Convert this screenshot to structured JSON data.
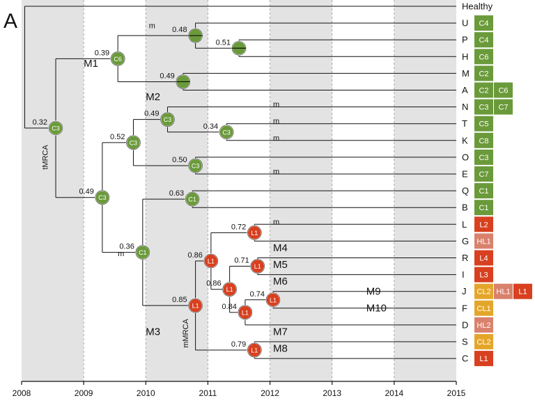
{
  "panel_label": "A",
  "axis": {
    "years": [
      "2008",
      "2009",
      "2010",
      "2011",
      "2012",
      "2013",
      "2014",
      "2015"
    ]
  },
  "chart_data": {
    "type": "phylogenetic-tree",
    "x_unit": "year",
    "xlim": [
      2008,
      2015
    ],
    "leaves": [
      {
        "label": "Healthy",
        "tags": []
      },
      {
        "label": "U",
        "tags": [
          "C4"
        ]
      },
      {
        "label": "P",
        "tags": [
          "C4"
        ]
      },
      {
        "label": "H",
        "tags": [
          "C6"
        ]
      },
      {
        "label": "M",
        "tags": [
          "C2"
        ]
      },
      {
        "label": "A",
        "tags": [
          "C2",
          "C6"
        ]
      },
      {
        "label": "N",
        "tags": [
          "C3",
          "C7"
        ]
      },
      {
        "label": "T",
        "tags": [
          "C5"
        ]
      },
      {
        "label": "K",
        "tags": [
          "C8"
        ]
      },
      {
        "label": "O",
        "tags": [
          "C3"
        ]
      },
      {
        "label": "E",
        "tags": [
          "C7"
        ]
      },
      {
        "label": "Q",
        "tags": [
          "C1"
        ]
      },
      {
        "label": "B",
        "tags": [
          "C1"
        ]
      },
      {
        "label": "L",
        "tags": [
          "L2"
        ]
      },
      {
        "label": "G",
        "tags": [
          "HL1"
        ]
      },
      {
        "label": "R",
        "tags": [
          "L4"
        ]
      },
      {
        "label": "I",
        "tags": [
          "L3"
        ]
      },
      {
        "label": "J",
        "tags": [
          "CL2",
          "HL1",
          "L1"
        ]
      },
      {
        "label": "F",
        "tags": [
          "CL1"
        ]
      },
      {
        "label": "D",
        "tags": [
          "HL2"
        ]
      },
      {
        "label": "S",
        "tags": [
          "CL2"
        ]
      },
      {
        "label": "C",
        "tags": [
          "L1"
        ]
      }
    ],
    "nodes": [
      {
        "id": "n_root",
        "x": 2008.05,
        "children": [
          "Healthy",
          "n_c3a"
        ]
      },
      {
        "id": "n_c3a",
        "x": 2008.55,
        "badge": "C3",
        "color": "green",
        "support": "0.32",
        "children": [
          "n_c6",
          "n_c3b"
        ]
      },
      {
        "id": "n_c6",
        "x": 2009.55,
        "badge": "C6",
        "color": "green",
        "support": "0.39",
        "children": [
          "n_half1",
          "n_half3"
        ]
      },
      {
        "id": "n_half1",
        "x": 2010.8,
        "badge": "",
        "half": true,
        "color": "green",
        "support": "0.48",
        "children": [
          "U",
          "n_half2"
        ]
      },
      {
        "id": "n_half2",
        "x": 2011.5,
        "badge": "",
        "half": true,
        "color": "green",
        "support": "0.51",
        "children": [
          "P",
          "H"
        ]
      },
      {
        "id": "n_half3",
        "x": 2010.6,
        "badge": "",
        "half": true,
        "color": "green",
        "support": "0.49",
        "children": [
          "M",
          "A"
        ]
      },
      {
        "id": "n_c3b",
        "x": 2009.3,
        "badge": "C3",
        "color": "green",
        "support": "0.49",
        "children": [
          "n_c3c",
          "n_c1a"
        ]
      },
      {
        "id": "n_c3c",
        "x": 2009.8,
        "badge": "C3",
        "color": "green",
        "support": "0.52",
        "children": [
          "n_c3d",
          "n_c3f"
        ]
      },
      {
        "id": "n_c3d",
        "x": 2010.35,
        "badge": "C3",
        "color": "green",
        "support": "0.49",
        "children": [
          "N",
          "n_c3e"
        ]
      },
      {
        "id": "n_c3e",
        "x": 2011.3,
        "badge": "C3",
        "color": "green",
        "support": "0.34",
        "children": [
          "T",
          "K"
        ]
      },
      {
        "id": "n_c3f",
        "x": 2010.8,
        "badge": "C3",
        "color": "green",
        "support": "0.50",
        "children": [
          "O",
          "E"
        ]
      },
      {
        "id": "n_c1a",
        "x": 2009.95,
        "badge": "C1",
        "color": "green",
        "support": "0.36",
        "children": [
          "n_c1b",
          "n_l1a"
        ]
      },
      {
        "id": "n_c1b",
        "x": 2010.75,
        "badge": "C1",
        "color": "green",
        "support": "0.63",
        "children": [
          "Q",
          "B"
        ]
      },
      {
        "id": "n_l1a",
        "x": 2010.8,
        "badge": "L1",
        "color": "red",
        "support": "0.85",
        "children": [
          "n_l1b",
          "n_l1f"
        ]
      },
      {
        "id": "n_l1b",
        "x": 2011.05,
        "badge": "L1",
        "color": "red",
        "support": "0.86",
        "children": [
          "n_l1c",
          "n_l1d"
        ]
      },
      {
        "id": "n_l1c",
        "x": 2011.75,
        "badge": "L1",
        "color": "red",
        "support": "0.72",
        "children": [
          "L",
          "G"
        ]
      },
      {
        "id": "n_l1d",
        "x": 2011.35,
        "badge": "L1",
        "color": "red",
        "support": "0.86",
        "children": [
          "n_l1e",
          "n_l1g"
        ]
      },
      {
        "id": "n_l1e",
        "x": 2011.8,
        "badge": "L1",
        "color": "red",
        "support": "0.71",
        "children": [
          "R",
          "I"
        ]
      },
      {
        "id": "n_l1g",
        "x": 2011.6,
        "badge": "L1",
        "color": "red",
        "support": "0.84",
        "children": [
          "n_l1h",
          "D"
        ]
      },
      {
        "id": "n_l1h",
        "x": 2012.05,
        "badge": "L1",
        "color": "red",
        "support": "0.74",
        "children": [
          "J",
          "F"
        ]
      },
      {
        "id": "n_l1f",
        "x": 2011.75,
        "badge": "L1",
        "color": "red",
        "support": "0.79",
        "children": [
          "S",
          "C"
        ]
      }
    ],
    "annotations": [
      {
        "text": "M1",
        "x": 2009.0,
        "row": 3.6
      },
      {
        "text": "M2",
        "x": 2010.0,
        "row": 5.6
      },
      {
        "text": "M3",
        "x": 2010.0,
        "row": 19.6
      },
      {
        "text": "M4",
        "x": 2012.05,
        "row": 14.6
      },
      {
        "text": "M5",
        "x": 2012.05,
        "row": 15.6
      },
      {
        "text": "M6",
        "x": 2012.05,
        "row": 16.6
      },
      {
        "text": "M7",
        "x": 2012.05,
        "row": 19.6
      },
      {
        "text": "M8",
        "x": 2012.05,
        "row": 20.6
      },
      {
        "text": "M9",
        "x": 2013.55,
        "row": 17.2
      },
      {
        "text": "M10",
        "x": 2013.55,
        "row": 18.2
      },
      {
        "text": "tMRCA",
        "x": 2008.42,
        "row": 9.0,
        "vertical": true
      },
      {
        "text": "mMRCA",
        "x": 2010.68,
        "row": 19.5,
        "vertical": true
      },
      {
        "text": "m",
        "x": 2010.05,
        "row": 1.3
      },
      {
        "text": "m",
        "x": 2012.05,
        "row": 6.0
      },
      {
        "text": "m",
        "x": 2012.05,
        "row": 7.0
      },
      {
        "text": "m",
        "x": 2012.05,
        "row": 8.0
      },
      {
        "text": "m",
        "x": 2012.05,
        "row": 10.0
      },
      {
        "text": "m",
        "x": 2009.55,
        "row": 14.9
      },
      {
        "text": "m",
        "x": 2012.05,
        "row": 13.0
      }
    ],
    "colors": {
      "green": "#6a9a3a",
      "red": "#d8401f",
      "tags": {
        "C1": "#6a9a3a",
        "C2": "#6a9a3a",
        "C3": "#6a9a3a",
        "C4": "#6a9a3a",
        "C5": "#6a9a3a",
        "C6": "#6a9a3a",
        "C7": "#6a9a3a",
        "C8": "#6a9a3a",
        "L1": "#d8401f",
        "L2": "#d8401f",
        "L3": "#d8401f",
        "L4": "#d8401f",
        "HL1": "#d9816c",
        "HL2": "#d9816c",
        "CL1": "#e4a62a",
        "CL2": "#e4a62a"
      },
      "band": "#e3e3e3"
    }
  }
}
